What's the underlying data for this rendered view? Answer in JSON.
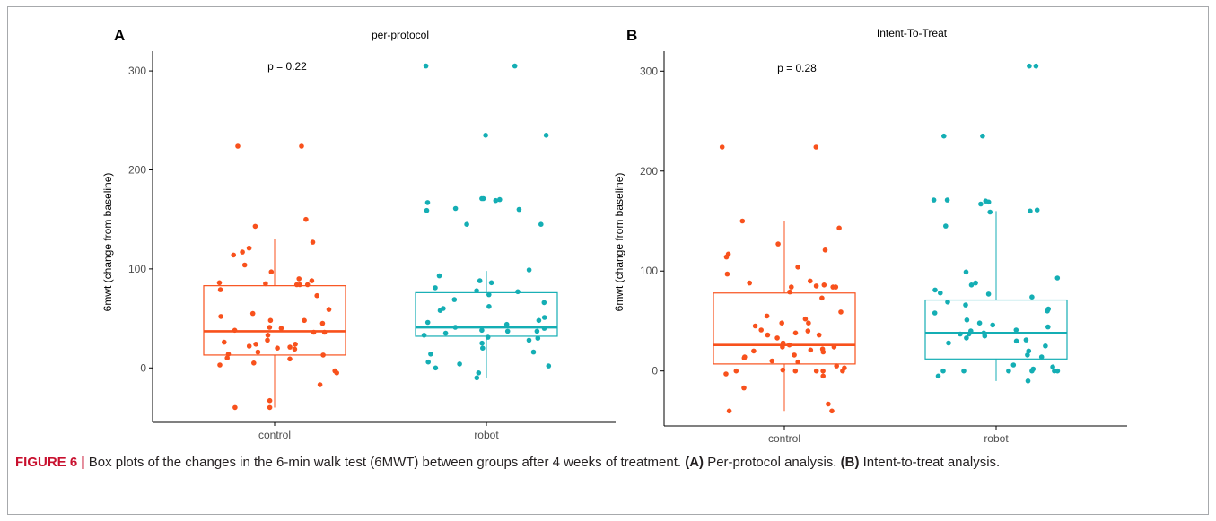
{
  "chart_data": [
    {
      "type": "box",
      "panel_label": "A",
      "title": "per-protocol",
      "ylabel": "6mwt (change from baseline)",
      "xlabel": "",
      "categories": [
        "control",
        "robot"
      ],
      "ylim": [
        -55,
        320
      ],
      "yticks": [
        0,
        100,
        200,
        300
      ],
      "annotation": "p = 0.22",
      "grid": false,
      "boxes": [
        {
          "category": "control",
          "color": "#F8511C",
          "min": -40,
          "q1": 13,
          "median": 37,
          "q3": 83,
          "max": 130
        },
        {
          "category": "robot",
          "color": "#14AEB4",
          "min": -10,
          "q1": 32,
          "median": 41,
          "q3": 76,
          "max": 98
        }
      ],
      "points": [
        {
          "category": "control",
          "values": [
            224,
            224,
            150,
            143,
            127,
            121,
            117,
            114,
            104,
            97,
            90,
            88,
            86,
            85,
            84,
            84,
            84,
            79,
            73,
            59,
            55,
            52,
            48,
            48,
            45,
            41,
            40,
            38,
            36,
            36,
            33,
            28,
            26,
            24,
            24,
            22,
            21,
            20,
            19,
            16,
            14,
            13,
            10,
            9,
            5,
            3,
            -3,
            -5,
            -17,
            -33,
            -40,
            -40
          ]
        },
        {
          "category": "robot",
          "values": [
            305,
            305,
            235,
            235,
            171,
            171,
            170,
            169,
            167,
            161,
            160,
            159,
            145,
            145,
            99,
            93,
            88,
            86,
            81,
            78,
            77,
            74,
            69,
            66,
            62,
            60,
            58,
            51,
            48,
            46,
            44,
            41,
            40,
            38,
            37,
            37,
            35,
            33,
            31,
            30,
            28,
            25,
            20,
            16,
            14,
            6,
            4,
            2,
            0,
            -5,
            -10
          ]
        }
      ]
    },
    {
      "type": "box",
      "panel_label": "B",
      "title": "Intent-To-Treat",
      "ylabel": "6mwt (change from baseline)",
      "xlabel": "",
      "categories": [
        "control",
        "robot"
      ],
      "ylim": [
        -55,
        320
      ],
      "yticks": [
        0,
        100,
        200,
        300
      ],
      "annotation": "p = 0.28",
      "grid": false,
      "boxes": [
        {
          "category": "control",
          "color": "#F8511C",
          "min": -40,
          "q1": 7,
          "median": 26,
          "q3": 78,
          "max": 150
        },
        {
          "category": "robot",
          "color": "#14AEB4",
          "min": -10,
          "q1": 12,
          "median": 38,
          "q3": 71,
          "max": 160
        }
      ],
      "points": [
        {
          "category": "control",
          "values": [
            224,
            224,
            150,
            143,
            127,
            121,
            117,
            114,
            104,
            97,
            90,
            88,
            86,
            85,
            84,
            84,
            84,
            79,
            73,
            59,
            55,
            52,
            48,
            48,
            45,
            41,
            40,
            38,
            36,
            36,
            33,
            28,
            26,
            24,
            24,
            22,
            21,
            20,
            19,
            16,
            14,
            13,
            10,
            9,
            5,
            3,
            1,
            0,
            0,
            0,
            0,
            0,
            -3,
            -5,
            -17,
            -33,
            -40,
            -40
          ]
        },
        {
          "category": "robot",
          "values": [
            305,
            305,
            235,
            235,
            171,
            171,
            170,
            169,
            167,
            161,
            160,
            159,
            145,
            99,
            93,
            88,
            86,
            81,
            78,
            77,
            74,
            69,
            66,
            62,
            60,
            58,
            51,
            48,
            46,
            44,
            41,
            40,
            38,
            37,
            37,
            35,
            33,
            31,
            30,
            28,
            25,
            20,
            16,
            14,
            6,
            4,
            2,
            0,
            0,
            0,
            0,
            0,
            0,
            -5,
            -10
          ]
        }
      ]
    }
  ],
  "caption": {
    "figure_label": "FIGURE 6",
    "separator": " | ",
    "intro": "Box plots of the changes in the 6-min walk test (6MWT) between groups after 4 weeks of treatment. ",
    "a_label": "(A)",
    "a_text": " Per-protocol analysis. ",
    "b_label": "(B)",
    "b_text": " Intent-to-treat analysis."
  }
}
